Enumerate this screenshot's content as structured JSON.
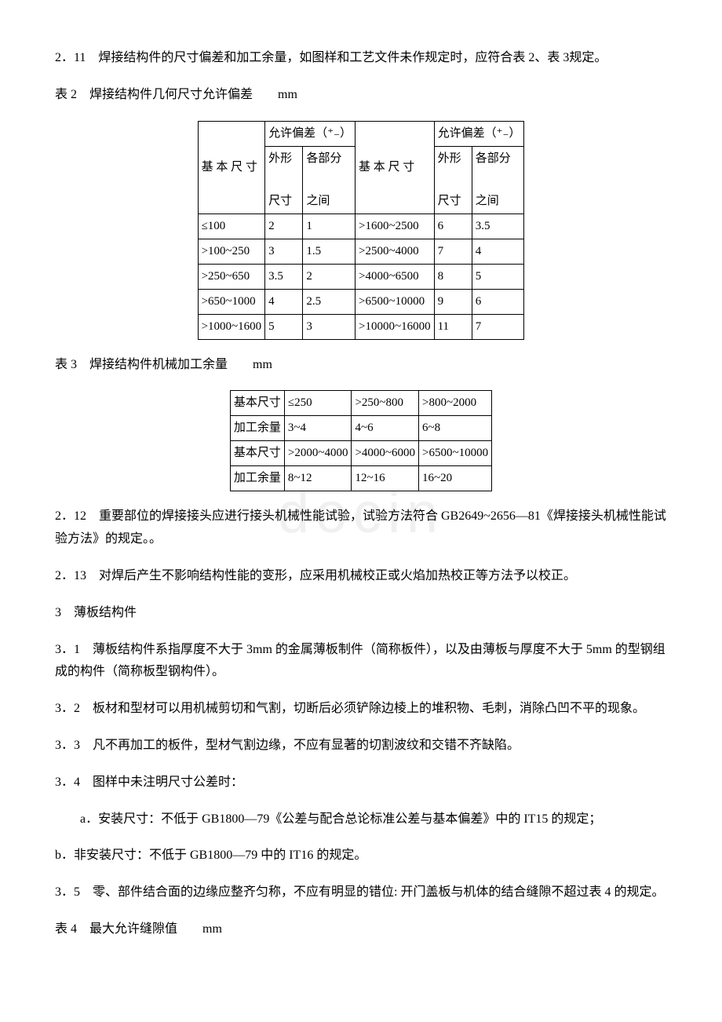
{
  "watermark": "docin",
  "p211": "2．11　焊接结构件的尺寸偏差和加工余量，如图样和工艺文件未作规定时，应符合表 2、表 3规定。",
  "t2cap": "表 2　焊接结构件几何尺寸允许偏差　　mm",
  "t2": {
    "h1": "基 本 尺 寸",
    "h2": "允许偏差（⁺₋）",
    "h3": "外形",
    "h4": "各部分",
    "h5": "尺寸",
    "h6": "之间",
    "rows_left": [
      [
        "≤100",
        "2",
        "1"
      ],
      [
        ">100~250",
        "3",
        "1.5"
      ],
      [
        ">250~650",
        "3.5",
        "2"
      ],
      [
        ">650~1000",
        "4",
        "2.5"
      ],
      [
        ">1000~1600",
        "5",
        "3"
      ]
    ],
    "rows_right": [
      [
        ">1600~2500",
        "6",
        "3.5"
      ],
      [
        ">2500~4000",
        "7",
        "4"
      ],
      [
        ">4000~6500",
        "8",
        "5"
      ],
      [
        ">6500~10000",
        "9",
        "6"
      ],
      [
        ">10000~16000",
        "11",
        "7"
      ]
    ]
  },
  "t3cap": "表 3　焊接结构件机械加工余量　　mm",
  "t3": {
    "r1": [
      "基本尺寸",
      "≤250",
      ">250~800",
      ">800~2000"
    ],
    "r2": [
      "加工余量",
      "3~4",
      "4~6",
      "6~8"
    ],
    "r3": [
      "基本尺寸",
      ">2000~4000",
      ">4000~6000",
      ">6500~10000"
    ],
    "r4": [
      "加工余量",
      "8~12",
      "12~16",
      "16~20"
    ]
  },
  "p212": "2．12　重要部位的焊接接头应进行接头机械性能试验，试验方法符合 GB2649~2656—81《焊接接头机械性能试验方法》的规定。。",
  "p213": "2．13　对焊后产生不影响结构性能的变形，应采用机械校正或火焰加热校正等方法予以校正。",
  "p3": "3　薄板结构件",
  "p31": "3．1　薄板结构件系指厚度不大于 3mm 的金属薄板制件（简称板件），以及由薄板与厚度不大于 5mm 的型钢组成的构件（简称板型钢构件）。",
  "p32": "3．2　板材和型材可以用机械剪切和气割，切断后必须铲除边棱上的堆积物、毛刺，消除凸凹不平的现象。",
  "p33": "3．3　凡不再加工的板件，型材气割边缘，不应有显著的切割波纹和交错不齐缺陷。",
  "p34": "3．4　图样中未注明尺寸公差时：",
  "p34a": "a．安装尺寸：不低于 GB1800—79《公差与配合总论标准公差与基本偏差》中的 IT15 的规定；",
  "p34b": "b．非安装尺寸：不低于 GB1800—79 中的 IT16 的规定。",
  "p35": "3．5　零、部件结合面的边缘应整齐匀称，不应有明显的错位: 开门盖板与机体的结合缝隙不超过表 4 的规定。",
  "t4cap": "表 4　最大允许缝隙值　　mm"
}
